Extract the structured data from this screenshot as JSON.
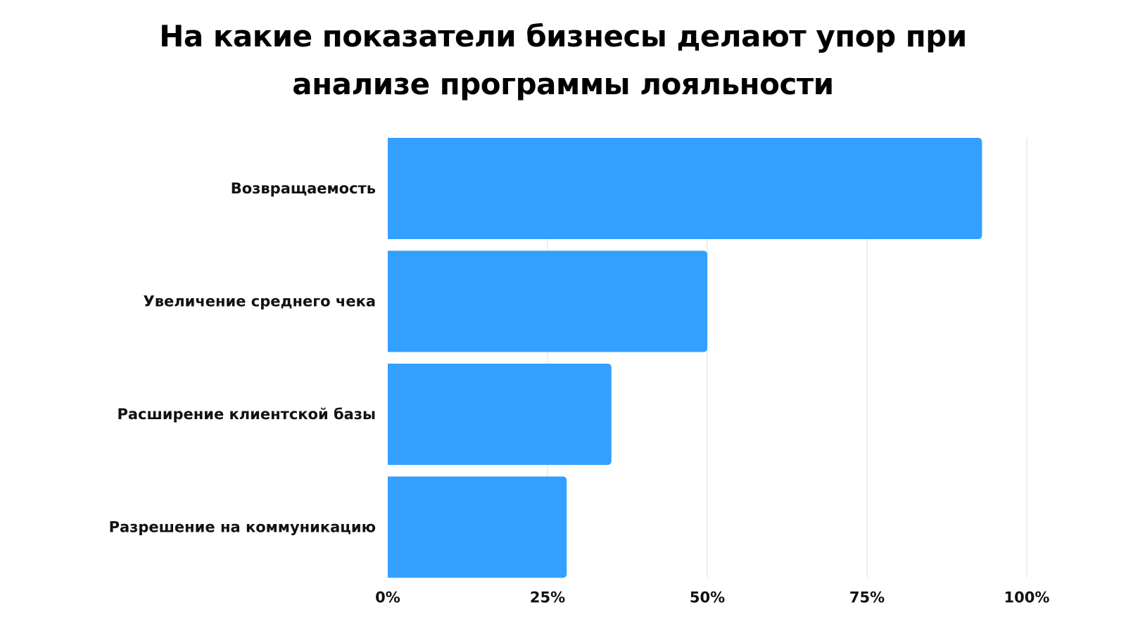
{
  "chart_data": {
    "type": "bar",
    "orientation": "horizontal",
    "title_lines": [
      "На какие показатели бизнесы делают упор при",
      "анализе программы лояльности"
    ],
    "categories": [
      "Возвращаемость",
      "Увеличение среднего чека",
      "Расширение клиентской базы",
      "Разрешение на коммуникацию"
    ],
    "values": [
      93,
      50,
      35,
      28
    ],
    "unit": "%",
    "xlim": [
      0,
      100
    ],
    "xticks": [
      0,
      25,
      50,
      75,
      100
    ],
    "xtick_labels": [
      "0%",
      "25%",
      "50%",
      "75%",
      "100%"
    ],
    "grid": "vertical",
    "legend": "none",
    "colors": {
      "bar": "#339ffe",
      "grid": "#dddddd",
      "text": "#111111"
    }
  }
}
